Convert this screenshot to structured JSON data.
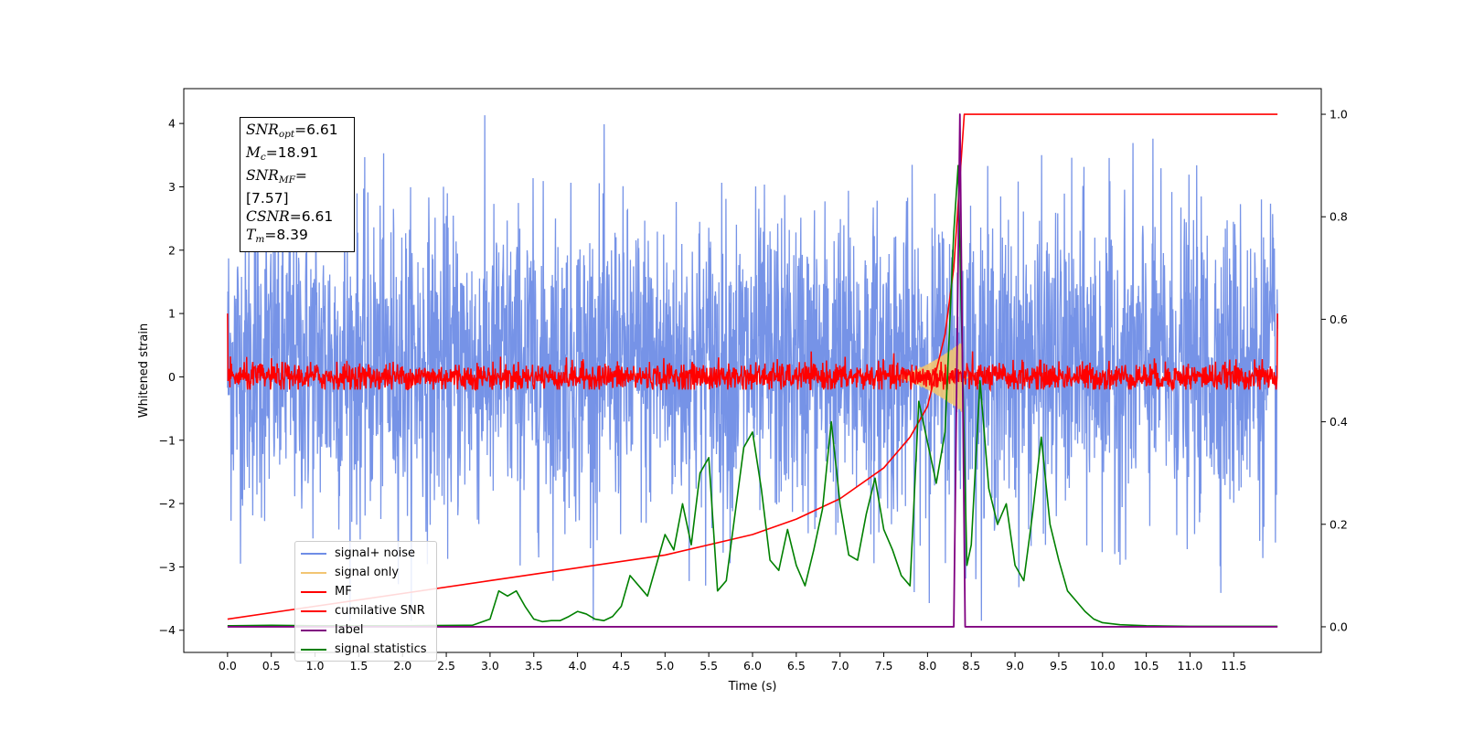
{
  "chart_data": {
    "type": "line",
    "xlabel": "Time (s)",
    "ylabel_left": "Whitened strain",
    "xlim": [
      -0.5,
      12.5
    ],
    "ylim_left": [
      -4.35,
      4.55
    ],
    "ylim_right": [
      -0.05,
      1.05
    ],
    "x_ticks": [
      "0.0",
      "0.5",
      "1.0",
      "1.5",
      "2.0",
      "2.5",
      "3.0",
      "3.5",
      "4.0",
      "4.5",
      "5.0",
      "5.5",
      "6.0",
      "6.5",
      "7.0",
      "7.5",
      "8.0",
      "8.5",
      "9.0",
      "9.5",
      "10.0",
      "10.5",
      "11.0",
      "11.5"
    ],
    "y_ticks_left": [
      "4",
      "3",
      "2",
      "1",
      "0",
      "−1",
      "−2",
      "−3",
      "−4"
    ],
    "y_ticks_right": [
      "1.0",
      "0.8",
      "0.6",
      "0.4",
      "0.2",
      "0.0"
    ],
    "grid": false,
    "legend_placement": "lower-left",
    "annotation": {
      "snr_opt": "6.61",
      "mc": "18.91",
      "snr_mf": "[7.57]",
      "csnr": "6.61",
      "tm": "8.39"
    },
    "series": [
      {
        "name": "signal+ noise",
        "color": "#6f8de6",
        "axis": "left",
        "description_values": {
          "x_range": [
            0.0,
            12.0
          ],
          "mean": 0.2,
          "spread_std": 1.2,
          "max": 4.15,
          "min": -3.85
        }
      },
      {
        "name": "signal only",
        "color": "#f2c572",
        "axis": "left",
        "chirp_peak_time": 8.39,
        "peak_amplitude": 0.55
      },
      {
        "name": "MF",
        "color": "#ff0000",
        "axis": "left",
        "description_values": {
          "x_range": [
            0.0,
            12.0
          ],
          "mean": 0.0,
          "spread": 0.15,
          "edge_value": 1.0
        }
      },
      {
        "name": "cumilative SNR",
        "color": "#ff0000",
        "axis": "right",
        "x": [
          0.0,
          1.0,
          2.0,
          3.0,
          4.0,
          5.0,
          6.0,
          6.5,
          7.0,
          7.5,
          7.8,
          8.0,
          8.2,
          8.3,
          8.38,
          8.42,
          12.0
        ],
        "y": [
          0.015,
          0.04,
          0.065,
          0.09,
          0.115,
          0.14,
          0.18,
          0.21,
          0.25,
          0.31,
          0.37,
          0.43,
          0.57,
          0.7,
          0.9,
          1.0,
          1.0
        ]
      },
      {
        "name": "label",
        "color": "#800080",
        "axis": "right",
        "x": [
          0.0,
          8.3,
          8.37,
          8.43,
          12.0
        ],
        "y": [
          0.0,
          0.0,
          1.0,
          0.0,
          0.0
        ]
      },
      {
        "name": "signal statistics",
        "color": "#008000",
        "axis": "right",
        "x": [
          0.0,
          0.5,
          1.0,
          2.0,
          2.8,
          3.0,
          3.1,
          3.2,
          3.3,
          3.4,
          3.5,
          3.6,
          3.7,
          3.8,
          3.9,
          4.0,
          4.1,
          4.2,
          4.3,
          4.4,
          4.5,
          4.6,
          4.7,
          4.8,
          4.9,
          5.0,
          5.1,
          5.2,
          5.3,
          5.4,
          5.5,
          5.6,
          5.7,
          5.8,
          5.9,
          6.0,
          6.1,
          6.2,
          6.3,
          6.4,
          6.5,
          6.6,
          6.7,
          6.8,
          6.9,
          7.0,
          7.1,
          7.2,
          7.3,
          7.4,
          7.5,
          7.6,
          7.7,
          7.8,
          7.9,
          8.0,
          8.1,
          8.2,
          8.3,
          8.35,
          8.45,
          8.5,
          8.6,
          8.7,
          8.8,
          8.9,
          9.0,
          9.1,
          9.2,
          9.3,
          9.4,
          9.5,
          9.6,
          9.7,
          9.8,
          9.9,
          10.0,
          10.2,
          10.5,
          11.0,
          12.0
        ],
        "y": [
          0.002,
          0.003,
          0.002,
          0.002,
          0.003,
          0.015,
          0.07,
          0.06,
          0.07,
          0.04,
          0.015,
          0.01,
          0.012,
          0.012,
          0.02,
          0.03,
          0.025,
          0.015,
          0.012,
          0.02,
          0.04,
          0.1,
          0.08,
          0.06,
          0.12,
          0.18,
          0.15,
          0.24,
          0.16,
          0.3,
          0.33,
          0.07,
          0.09,
          0.22,
          0.35,
          0.38,
          0.27,
          0.13,
          0.11,
          0.19,
          0.12,
          0.08,
          0.15,
          0.23,
          0.4,
          0.24,
          0.14,
          0.13,
          0.22,
          0.29,
          0.19,
          0.15,
          0.1,
          0.08,
          0.44,
          0.36,
          0.28,
          0.38,
          0.77,
          0.9,
          0.12,
          0.16,
          0.48,
          0.27,
          0.2,
          0.24,
          0.12,
          0.09,
          0.22,
          0.37,
          0.2,
          0.13,
          0.07,
          0.05,
          0.03,
          0.015,
          0.008,
          0.004,
          0.002,
          0.001,
          0.001
        ]
      }
    ]
  }
}
